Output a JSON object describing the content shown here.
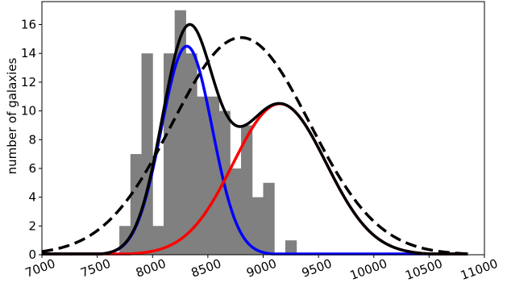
{
  "chart_data": {
    "type": "bar",
    "title": "",
    "xlabel": "",
    "ylabel": "number of galaxies",
    "xlim": [
      7000,
      11000
    ],
    "ylim": [
      0,
      17.6
    ],
    "grid": false,
    "x_ticks": [
      "7000",
      "7500",
      "8000",
      "8500",
      "9000",
      "9500",
      "10000",
      "10500",
      "11000"
    ],
    "y_ticks": [
      "0",
      "2",
      "4",
      "6",
      "8",
      "10",
      "12",
      "14",
      "16"
    ],
    "histogram": {
      "color": "#808080",
      "bins": [
        {
          "x0": 7700,
          "x1": 7800,
          "count": 2
        },
        {
          "x0": 7800,
          "x1": 7900,
          "count": 7
        },
        {
          "x0": 7900,
          "x1": 8000,
          "count": 14
        },
        {
          "x0": 8000,
          "x1": 8100,
          "count": 2
        },
        {
          "x0": 8100,
          "x1": 8200,
          "count": 14
        },
        {
          "x0": 8200,
          "x1": 8300,
          "count": 17
        },
        {
          "x0": 8300,
          "x1": 8400,
          "count": 14
        },
        {
          "x0": 8400,
          "x1": 8500,
          "count": 11
        },
        {
          "x0": 8500,
          "x1": 8600,
          "count": 11
        },
        {
          "x0": 8600,
          "x1": 8700,
          "count": 10
        },
        {
          "x0": 8700,
          "x1": 8800,
          "count": 6
        },
        {
          "x0": 8800,
          "x1": 8900,
          "count": 9
        },
        {
          "x0": 8900,
          "x1": 9000,
          "count": 4
        },
        {
          "x0": 9000,
          "x1": 9100,
          "count": 5
        },
        {
          "x0": 9100,
          "x1": 9200,
          "count": 0
        },
        {
          "x0": 9200,
          "x1": 9300,
          "count": 1
        }
      ]
    },
    "series": [
      {
        "style": "solid",
        "color": "#0000ff",
        "width": 3.5,
        "components": [
          {
            "amp": 14.5,
            "mu": 8310,
            "sigma": 230
          }
        ]
      },
      {
        "style": "solid",
        "color": "#ff0000",
        "width": 3.5,
        "components": [
          {
            "amp": 10.5,
            "mu": 9150,
            "sigma": 420
          }
        ]
      },
      {
        "style": "dashed",
        "color": "#000000",
        "width": 3.5,
        "components": [
          {
            "amp": 15.1,
            "mu": 8800,
            "sigma": 620
          }
        ]
      },
      {
        "style": "solid",
        "color": "#000000",
        "width": 3.5,
        "components": [
          {
            "amp": 14.5,
            "mu": 8310,
            "sigma": 230
          },
          {
            "amp": 10.5,
            "mu": 9150,
            "sigma": 420
          }
        ]
      }
    ]
  }
}
